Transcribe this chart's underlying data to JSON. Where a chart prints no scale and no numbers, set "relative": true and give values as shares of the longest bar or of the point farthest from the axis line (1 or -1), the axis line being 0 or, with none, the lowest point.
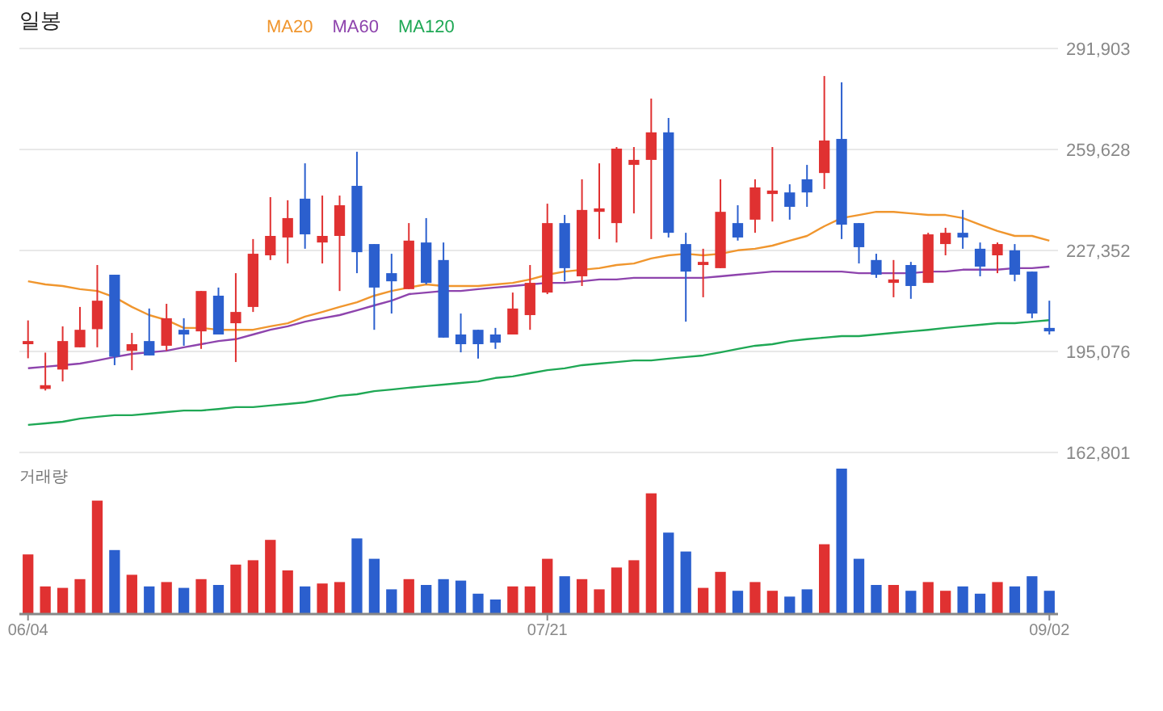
{
  "chart_data": [
    {
      "type": "candlestick",
      "title": "일봉",
      "legend": "top",
      "grid": "y",
      "tick_labels": "y",
      "categories": [
        null,
        null,
        null,
        null,
        null,
        null,
        null,
        null,
        null,
        null,
        null,
        null,
        null,
        null,
        null,
        null,
        null,
        null,
        null,
        null,
        null,
        null,
        null,
        null,
        null,
        null,
        null,
        null,
        null,
        null,
        null,
        null,
        null,
        null,
        null,
        null,
        null,
        null,
        null,
        null,
        null,
        null,
        null,
        null,
        null,
        null,
        null,
        null,
        null,
        null,
        null,
        null,
        null,
        null,
        null,
        null,
        null,
        null,
        null,
        null
      ],
      "ylim": [
        162801,
        291903
      ],
      "yticks": [
        {
          "value": 162801,
          "label": "162,801"
        },
        {
          "value": 195076,
          "label": "195,076"
        },
        {
          "value": 227352,
          "label": "227,352"
        },
        {
          "value": 259628,
          "label": "259,628"
        },
        {
          "value": 291903,
          "label": "291,903"
        }
      ],
      "ohlc": [
        [
          197400,
          205000,
          192900,
          198400
        ],
        [
          183100,
          194700,
          182600,
          184300
        ],
        [
          189300,
          203100,
          185500,
          198400
        ],
        [
          196400,
          209300,
          196400,
          202000
        ],
        [
          202200,
          222700,
          196400,
          211300
        ],
        [
          219600,
          219600,
          190700,
          193400
        ],
        [
          195300,
          201000,
          189100,
          197400
        ],
        [
          198400,
          208800,
          193800,
          193800
        ],
        [
          196900,
          210300,
          195300,
          205700
        ],
        [
          202000,
          205700,
          196900,
          200500
        ],
        [
          201500,
          214400,
          195900,
          214400
        ],
        [
          212900,
          215500,
          200500,
          200500
        ],
        [
          204100,
          220100,
          191700,
          207700
        ],
        [
          209300,
          231000,
          207700,
          226300
        ],
        [
          225800,
          244400,
          224300,
          232000
        ],
        [
          231500,
          243400,
          223200,
          237700
        ],
        [
          243900,
          255200,
          227900,
          232500
        ],
        [
          229900,
          244900,
          223200,
          232000
        ],
        [
          232000,
          244900,
          214400,
          241800
        ],
        [
          248000,
          258900,
          220100,
          226800
        ],
        [
          229400,
          229400,
          202000,
          215500
        ],
        [
          220100,
          226300,
          207200,
          217500
        ],
        [
          215000,
          236100,
          215000,
          230500
        ],
        [
          229900,
          237700,
          216500,
          217000
        ],
        [
          224300,
          229900,
          199500,
          199500
        ],
        [
          200500,
          207200,
          194800,
          197400
        ],
        [
          202000,
          202000,
          192800,
          197400
        ],
        [
          200500,
          202600,
          195900,
          197900
        ],
        [
          200500,
          213900,
          200500,
          208800
        ],
        [
          206700,
          222700,
          202000,
          217000
        ],
        [
          213900,
          242300,
          213400,
          236100
        ],
        [
          236100,
          238700,
          217500,
          221700
        ],
        [
          219100,
          250100,
          216000,
          240300
        ],
        [
          239700,
          255200,
          231000,
          240800
        ],
        [
          236100,
          260400,
          229900,
          259900
        ],
        [
          254700,
          260400,
          239200,
          256300
        ],
        [
          256300,
          275900,
          231000,
          265100
        ],
        [
          265100,
          269700,
          231500,
          233000
        ],
        [
          229400,
          233000,
          204600,
          220600
        ],
        [
          222700,
          227900,
          212400,
          223700
        ],
        [
          221700,
          250100,
          221700,
          239700
        ],
        [
          236100,
          241800,
          230500,
          231500
        ],
        [
          237200,
          250100,
          233000,
          247500
        ],
        [
          245400,
          260400,
          236600,
          246500
        ],
        [
          245900,
          248500,
          237200,
          241300
        ],
        [
          250100,
          254700,
          241300,
          245900
        ],
        [
          252100,
          283100,
          247000,
          262500
        ],
        [
          263000,
          281100,
          231000,
          235600
        ],
        [
          236100,
          236100,
          223200,
          228400
        ],
        [
          224300,
          226300,
          218600,
          219600
        ],
        [
          217000,
          224300,
          212400,
          218100
        ],
        [
          222700,
          223700,
          211900,
          216000
        ],
        [
          217000,
          233000,
          217000,
          232500
        ],
        [
          229400,
          234600,
          225800,
          233000
        ],
        [
          233000,
          240300,
          227900,
          231500
        ],
        [
          227900,
          229900,
          219100,
          222200
        ],
        [
          225800,
          229900,
          220100,
          229400
        ],
        [
          227400,
          229400,
          217500,
          219600
        ],
        [
          220600,
          220600,
          205700,
          207200
        ],
        [
          202600,
          211300,
          200500,
          201500
        ]
      ],
      "colors": [
        "#e03131",
        "#e03131",
        "#e03131",
        "#e03131",
        "#e03131",
        "#2b5fce",
        "#e03131",
        "#2b5fce",
        "#e03131",
        "#2b5fce",
        "#e03131",
        "#2b5fce",
        "#e03131",
        "#e03131",
        "#e03131",
        "#e03131",
        "#2b5fce",
        "#e03131",
        "#e03131",
        "#2b5fce",
        "#2b5fce",
        "#2b5fce",
        "#e03131",
        "#2b5fce",
        "#2b5fce",
        "#2b5fce",
        "#2b5fce",
        "#2b5fce",
        "#e03131",
        "#e03131",
        "#e03131",
        "#2b5fce",
        "#e03131",
        "#e03131",
        "#e03131",
        "#e03131",
        "#e03131",
        "#2b5fce",
        "#2b5fce",
        "#e03131",
        "#e03131",
        "#2b5fce",
        "#e03131",
        "#e03131",
        "#2b5fce",
        "#2b5fce",
        "#e03131",
        "#2b5fce",
        "#2b5fce",
        "#2b5fce",
        "#e03131",
        "#2b5fce",
        "#e03131",
        "#e03131",
        "#2b5fce",
        "#2b5fce",
        "#e03131",
        "#2b5fce",
        "#2b5fce",
        "#2b5fce"
      ],
      "series": [
        {
          "name": "MA20",
          "type": "line",
          "color": "#f0962e",
          "values": [
            217500,
            216500,
            216000,
            215000,
            214400,
            212400,
            209300,
            206700,
            205100,
            202600,
            202600,
            202000,
            202000,
            202000,
            203100,
            204100,
            206200,
            207700,
            209300,
            210800,
            212900,
            214400,
            215500,
            216500,
            216000,
            216000,
            216000,
            216500,
            217000,
            218100,
            219600,
            220600,
            221200,
            221700,
            222700,
            223200,
            224800,
            225800,
            226300,
            225800,
            226300,
            227400,
            227900,
            228900,
            230500,
            232000,
            235100,
            237700,
            238700,
            239700,
            239700,
            239200,
            238700,
            238700,
            237700,
            235600,
            233600,
            232000,
            232000,
            230500
          ]
        },
        {
          "name": "MA60",
          "type": "line",
          "color": "#8e44ad",
          "values": [
            189700,
            190200,
            190700,
            191200,
            192200,
            193300,
            194300,
            194800,
            195300,
            196400,
            197400,
            198400,
            199000,
            200500,
            202000,
            203100,
            204600,
            205700,
            206700,
            208200,
            209800,
            211300,
            213400,
            213900,
            214400,
            214400,
            215000,
            215500,
            216000,
            216500,
            217000,
            217000,
            217500,
            218100,
            218100,
            218600,
            218600,
            218600,
            218600,
            218600,
            219100,
            219600,
            220100,
            220600,
            220600,
            220600,
            220600,
            220600,
            220100,
            220100,
            220100,
            220100,
            220600,
            220600,
            221200,
            221200,
            221200,
            221700,
            221700,
            222200
          ]
        },
        {
          "name": "MA120",
          "type": "line",
          "color": "#1fa855",
          "values": [
            171600,
            172100,
            172600,
            173600,
            174200,
            174700,
            174700,
            175200,
            175700,
            176200,
            176200,
            176700,
            177300,
            177300,
            177800,
            178300,
            178800,
            179800,
            180900,
            181400,
            182400,
            182900,
            183500,
            184000,
            184500,
            185000,
            185500,
            186600,
            187100,
            188100,
            189100,
            189700,
            190700,
            191200,
            191700,
            192200,
            192200,
            192800,
            193300,
            193800,
            194800,
            195900,
            196900,
            197400,
            198400,
            199000,
            199500,
            200000,
            200000,
            200500,
            201000,
            201500,
            202000,
            202600,
            203100,
            203600,
            204100,
            204100,
            204600,
            205100
          ]
        }
      ]
    },
    {
      "type": "bar",
      "title": "거래량",
      "relative": true,
      "tick_labels": "x",
      "categories": [
        "06/04",
        null,
        null,
        null,
        null,
        null,
        null,
        null,
        null,
        null,
        null,
        null,
        null,
        null,
        null,
        null,
        null,
        null,
        null,
        null,
        null,
        null,
        null,
        null,
        null,
        null,
        null,
        null,
        null,
        null,
        "07/21",
        null,
        null,
        null,
        null,
        null,
        null,
        null,
        null,
        null,
        null,
        null,
        null,
        null,
        null,
        null,
        null,
        null,
        null,
        null,
        null,
        null,
        null,
        null,
        null,
        null,
        null,
        null,
        null,
        "09/02"
      ],
      "values": [
        0.41,
        0.19,
        0.18,
        0.24,
        0.78,
        0.44,
        0.27,
        0.19,
        0.22,
        0.18,
        0.24,
        0.2,
        0.34,
        0.37,
        0.51,
        0.3,
        0.19,
        0.21,
        0.22,
        0.52,
        0.38,
        0.17,
        0.24,
        0.2,
        0.24,
        0.23,
        0.14,
        0.1,
        0.19,
        0.19,
        0.38,
        0.26,
        0.24,
        0.17,
        0.32,
        0.37,
        0.83,
        0.56,
        0.43,
        0.18,
        0.29,
        0.16,
        0.22,
        0.16,
        0.12,
        0.17,
        0.48,
        1,
        0.38,
        0.2,
        0.2,
        0.16,
        0.22,
        0.16,
        0.19,
        0.14,
        0.22,
        0.19,
        0.26,
        0.16
      ],
      "colors": [
        "#e03131",
        "#e03131",
        "#e03131",
        "#e03131",
        "#e03131",
        "#2b5fce",
        "#e03131",
        "#2b5fce",
        "#e03131",
        "#2b5fce",
        "#e03131",
        "#2b5fce",
        "#e03131",
        "#e03131",
        "#e03131",
        "#e03131",
        "#2b5fce",
        "#e03131",
        "#e03131",
        "#2b5fce",
        "#2b5fce",
        "#2b5fce",
        "#e03131",
        "#2b5fce",
        "#2b5fce",
        "#2b5fce",
        "#2b5fce",
        "#2b5fce",
        "#e03131",
        "#e03131",
        "#e03131",
        "#2b5fce",
        "#e03131",
        "#e03131",
        "#e03131",
        "#e03131",
        "#e03131",
        "#2b5fce",
        "#2b5fce",
        "#e03131",
        "#e03131",
        "#2b5fce",
        "#e03131",
        "#e03131",
        "#2b5fce",
        "#2b5fce",
        "#e03131",
        "#2b5fce",
        "#2b5fce",
        "#2b5fce",
        "#e03131",
        "#2b5fce",
        "#e03131",
        "#e03131",
        "#2b5fce",
        "#2b5fce",
        "#e03131",
        "#2b5fce",
        "#2b5fce",
        "#2b5fce"
      ]
    }
  ]
}
